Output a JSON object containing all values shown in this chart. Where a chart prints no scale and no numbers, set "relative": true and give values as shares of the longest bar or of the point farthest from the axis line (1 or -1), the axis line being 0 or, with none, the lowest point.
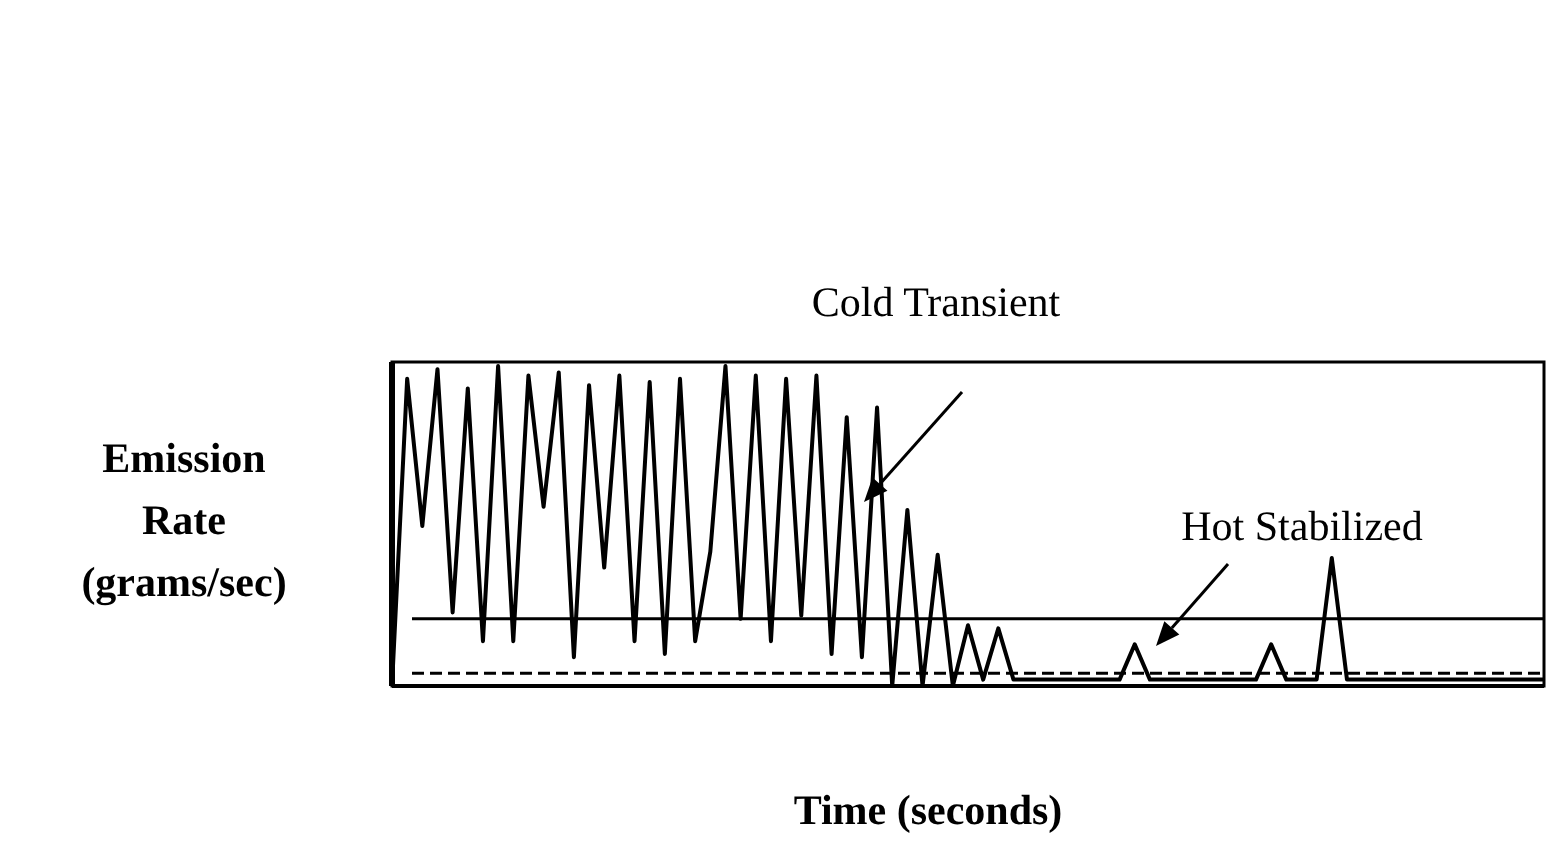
{
  "chart_data": {
    "type": "line",
    "relative": true,
    "xlabel": "Time (seconds)",
    "ylabel": "Emission Rate (grams/sec)",
    "annotations": [
      "Cold Transient",
      "Hot Stabilized"
    ],
    "categories": [
      null,
      null,
      null,
      null,
      null,
      null,
      null,
      null,
      null,
      null,
      null,
      null,
      null,
      null,
      null,
      null,
      null,
      null,
      null,
      null,
      null,
      null,
      null,
      null,
      null,
      null,
      null,
      null,
      null,
      null,
      null,
      null,
      null,
      null,
      null,
      null,
      null,
      null,
      null,
      null,
      null,
      null,
      null,
      null,
      null,
      null,
      null,
      null,
      null,
      null,
      null,
      null,
      null,
      null,
      null,
      null,
      null,
      null,
      null,
      null,
      null,
      null,
      null,
      null,
      null,
      null,
      null,
      null,
      null,
      null,
      null,
      null,
      null,
      null,
      null,
      null,
      null
    ],
    "series": [
      {
        "color": "#000000",
        "values": [
          0,
          0.96,
          0.5,
          0.99,
          0.23,
          0.93,
          0.14,
          1,
          0.14,
          0.97,
          0.56,
          0.98,
          0.09,
          0.94,
          0.37,
          0.97,
          0.14,
          0.95,
          0.1,
          0.96,
          0.14,
          0.42,
          1,
          0.21,
          0.97,
          0.14,
          0.96,
          0.22,
          0.97,
          0.1,
          0.84,
          0.09,
          0.87,
          0,
          0.55,
          0,
          0.41,
          0,
          0.19,
          0.02,
          0.18,
          0.02,
          0.02,
          0.02,
          0.02,
          0.02,
          0.02,
          0.02,
          0.02,
          0.13,
          0.02,
          0.02,
          0.02,
          0.02,
          0.02,
          0.02,
          0.02,
          0.02,
          0.13,
          0.02,
          0.02,
          0.02,
          0.4,
          0.02,
          0.02,
          0.02,
          0.02,
          0.02,
          0.02,
          0.02,
          0.02,
          0.02,
          0.02,
          0.02,
          0.02,
          0.02,
          0.02
        ]
      }
    ],
    "ref_lines": [
      {
        "axis": "y",
        "value": 0.21,
        "color": "#000000",
        "line_style": "solid"
      },
      {
        "axis": "y",
        "value": 0.04,
        "color": "#000000",
        "line_style": "dashed"
      }
    ],
    "line_style": "solid"
  }
}
